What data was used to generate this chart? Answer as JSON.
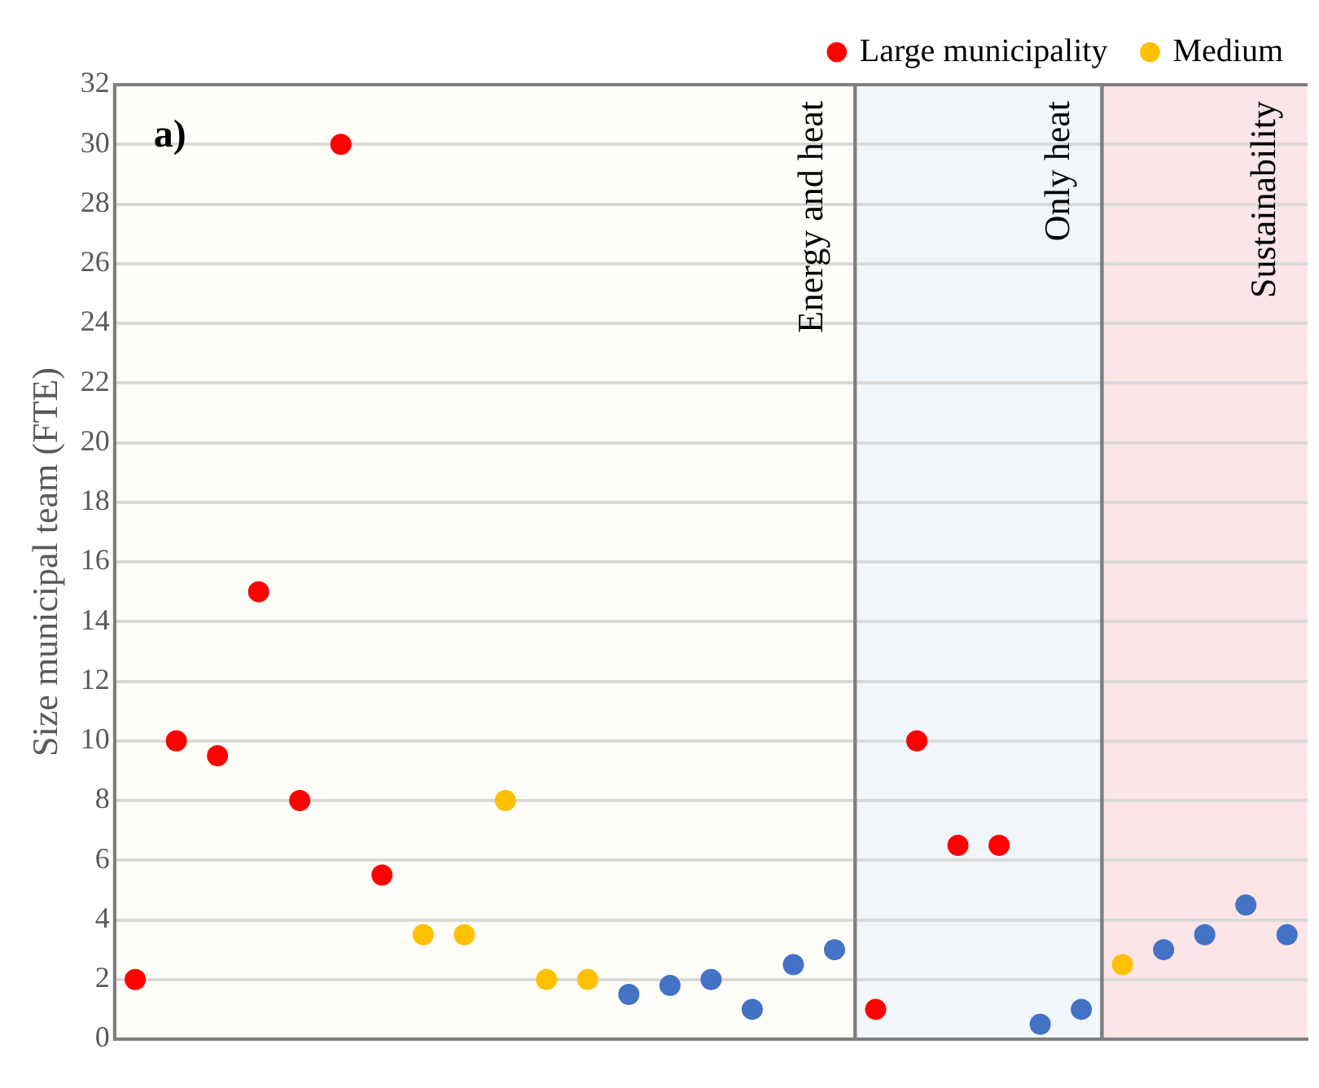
{
  "chart_data": {
    "type": "scatter",
    "ylabel": "Size municipal team (FTE)",
    "ylim": [
      0,
      32
    ],
    "yticks": [
      0,
      2,
      4,
      6,
      8,
      10,
      12,
      14,
      16,
      18,
      20,
      22,
      24,
      26,
      28,
      30,
      32
    ],
    "tick_labels": "y",
    "grid": "y",
    "legend": "top right",
    "marker": "circle",
    "annotations": [
      "a)",
      "Energy and heat",
      "Only heat",
      "Sustainability"
    ],
    "categories": [
      null,
      null,
      null,
      null,
      null,
      null,
      null,
      null,
      null,
      null,
      null,
      null,
      null,
      null,
      null,
      null,
      null,
      null,
      null,
      null,
      null,
      null,
      null,
      null,
      null,
      null,
      null,
      null,
      null
    ],
    "series": [
      {
        "name": "Large municipality",
        "color": "#ff0000",
        "values": [
          2,
          10,
          9.5,
          15,
          8,
          30,
          5.5,
          null,
          null,
          null,
          null,
          null,
          null,
          null,
          null,
          null,
          null,
          null,
          1,
          10,
          6.5,
          6.5,
          null,
          null,
          null,
          null,
          null,
          null,
          null
        ]
      },
      {
        "name": "Medium",
        "color": "#ffc000",
        "values": [
          null,
          null,
          null,
          null,
          null,
          null,
          null,
          3.5,
          3.5,
          8,
          2,
          2,
          null,
          null,
          null,
          null,
          null,
          null,
          null,
          null,
          null,
          null,
          null,
          null,
          2.5,
          null,
          null,
          null,
          null
        ]
      },
      {
        "color": "#4472c4",
        "values": [
          null,
          null,
          null,
          null,
          null,
          null,
          null,
          null,
          null,
          null,
          null,
          null,
          1.5,
          1.8,
          2,
          1,
          2.5,
          3,
          null,
          null,
          null,
          null,
          0.5,
          1,
          null,
          3,
          3.5,
          4.5,
          3.5
        ]
      }
    ]
  }
}
